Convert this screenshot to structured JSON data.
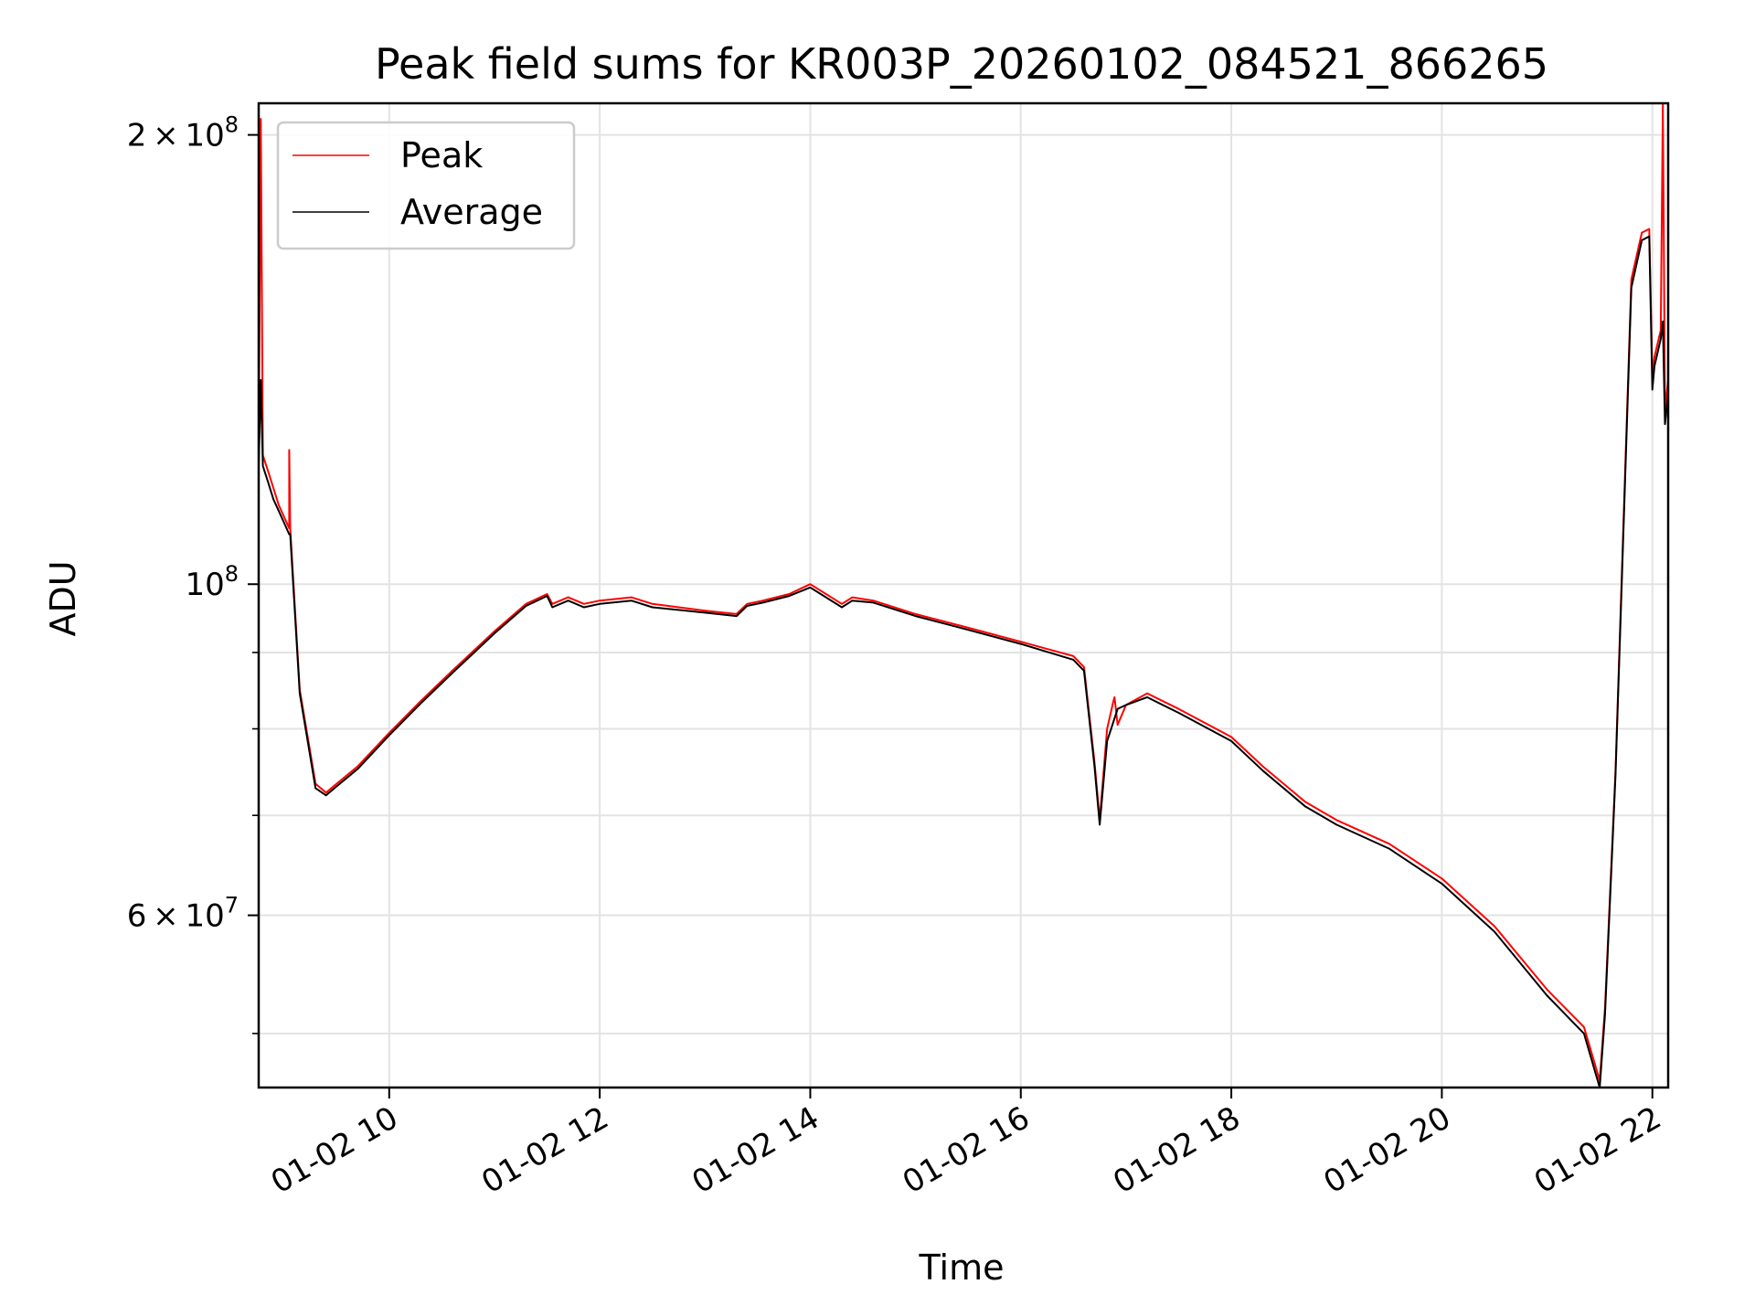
{
  "chart_data": {
    "type": "line",
    "title": "Peak field sums for KR003P_20260102_084521_866265",
    "xlabel": "Time",
    "ylabel": "ADU",
    "x_unit": "hours of day 01-02",
    "xlim": [
      8.76,
      22.15
    ],
    "ylim": [
      46000000,
      210000000
    ],
    "yscale": "log",
    "grid": true,
    "legend_position": "top-left",
    "x_ticks": [
      {
        "value": 10,
        "label": "01-02 10"
      },
      {
        "value": 12,
        "label": "01-02 12"
      },
      {
        "value": 14,
        "label": "01-02 14"
      },
      {
        "value": 16,
        "label": "01-02 16"
      },
      {
        "value": 18,
        "label": "01-02 18"
      },
      {
        "value": 20,
        "label": "01-02 20"
      },
      {
        "value": 22,
        "label": "01-02 22"
      }
    ],
    "y_major_ticks": [
      {
        "value": 200000000,
        "mantissa": "2",
        "exponent": "8"
      },
      {
        "value": 100000000,
        "mantissa": "",
        "exponent": "8"
      },
      {
        "value": 60000000,
        "mantissa": "6",
        "exponent": "7"
      }
    ],
    "y_minor_ticks": [
      50000000,
      70000000,
      80000000,
      90000000
    ],
    "series": [
      {
        "name": "Peak",
        "color": "#ff0000",
        "x": [
          8.76,
          8.78,
          8.8,
          8.85,
          8.9,
          8.95,
          9.0,
          9.05,
          9.05,
          9.06,
          9.15,
          9.3,
          9.4,
          9.5,
          9.7,
          10.0,
          10.3,
          10.6,
          11.0,
          11.3,
          11.5,
          11.55,
          11.7,
          11.85,
          12.0,
          12.3,
          12.5,
          13.0,
          13.3,
          13.4,
          13.55,
          13.8,
          14.0,
          14.3,
          14.4,
          14.6,
          15.0,
          15.5,
          16.0,
          16.5,
          16.6,
          16.7,
          16.75,
          16.82,
          16.88,
          16.89,
          16.92,
          17.0,
          17.2,
          17.5,
          18.0,
          18.3,
          18.7,
          19.0,
          19.5,
          20.0,
          20.5,
          21.0,
          21.35,
          21.5,
          21.55,
          21.65,
          21.8,
          21.9,
          21.97,
          22.0,
          22.02,
          22.05,
          22.08,
          22.1,
          22.12,
          22.15
        ],
        "y": [
          122000000,
          205000000,
          122000000,
          119000000,
          116000000,
          113000000,
          111000000,
          109000000,
          123000000,
          109000000,
          85000000,
          73500000,
          72500000,
          73500000,
          75500000,
          79500000,
          83500000,
          87500000,
          93000000,
          97000000,
          98500000,
          97000000,
          98000000,
          97000000,
          97500000,
          98000000,
          97000000,
          96000000,
          95500000,
          97000000,
          97500000,
          98500000,
          100000000,
          97000000,
          98000000,
          97500000,
          95500000,
          93500000,
          91500000,
          89500000,
          88000000,
          76000000,
          69500000,
          80000000,
          83500000,
          84000000,
          80500000,
          83000000,
          84500000,
          82500000,
          79000000,
          75500000,
          71500000,
          69500000,
          67000000,
          63500000,
          59000000,
          53500000,
          50500000,
          46500000,
          52000000,
          75000000,
          160000000,
          172000000,
          173000000,
          138000000,
          142000000,
          145000000,
          148000000,
          210000000,
          131000000,
          137000000
        ]
      },
      {
        "name": "Average",
        "color": "#000000",
        "x": [
          8.76,
          8.78,
          8.8,
          8.85,
          8.9,
          8.95,
          9.0,
          9.05,
          9.06,
          9.15,
          9.3,
          9.4,
          9.5,
          9.7,
          10.0,
          10.3,
          10.6,
          11.0,
          11.3,
          11.5,
          11.55,
          11.7,
          11.85,
          12.0,
          12.3,
          12.5,
          13.0,
          13.3,
          13.4,
          13.55,
          13.8,
          14.0,
          14.3,
          14.4,
          14.6,
          15.0,
          15.5,
          16.0,
          16.5,
          16.6,
          16.7,
          16.75,
          16.82,
          16.92,
          17.0,
          17.2,
          17.5,
          18.0,
          18.3,
          18.7,
          19.0,
          19.5,
          20.0,
          20.5,
          21.0,
          21.35,
          21.5,
          21.55,
          21.65,
          21.8,
          21.9,
          21.97,
          22.0,
          22.02,
          22.05,
          22.08,
          22.1,
          22.12,
          22.15
        ],
        "y": [
          120000000,
          137000000,
          120000000,
          117000000,
          114000000,
          112000000,
          110000000,
          108000000,
          108000000,
          84500000,
          73000000,
          72200000,
          73200000,
          75200000,
          79200000,
          83200000,
          87200000,
          92700000,
          96700000,
          98200000,
          96500000,
          97500000,
          96500000,
          97000000,
          97500000,
          96500000,
          95700000,
          95200000,
          96700000,
          97200000,
          98200000,
          99500000,
          96500000,
          97500000,
          97200000,
          95200000,
          93200000,
          91200000,
          89000000,
          87500000,
          75500000,
          69000000,
          78500000,
          82500000,
          83000000,
          84000000,
          82000000,
          78500000,
          75000000,
          71000000,
          69000000,
          66500000,
          63000000,
          58500000,
          53000000,
          50000000,
          46000000,
          51500000,
          74500000,
          158000000,
          170000000,
          171000000,
          135000000,
          140000000,
          143000000,
          146000000,
          150000000,
          128000000,
          134000000
        ]
      }
    ]
  }
}
